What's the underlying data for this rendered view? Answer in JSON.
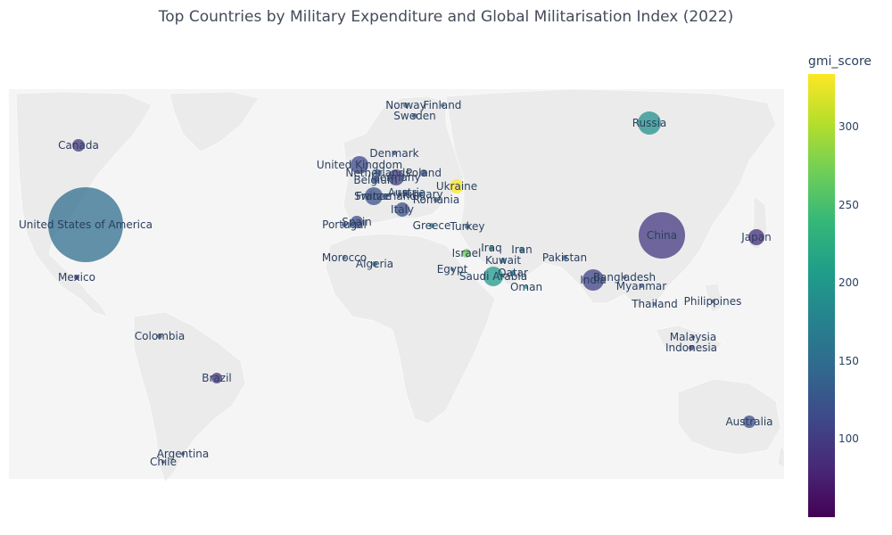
{
  "title": "Top Countries by Military Expenditure and Global Militarisation Index (2022)",
  "colorbar": {
    "title": "gmi_score",
    "ticks": [
      "300",
      "250",
      "200",
      "150",
      "100"
    ],
    "colors": [
      "#440154",
      "#482878",
      "#3e4989",
      "#31688e",
      "#26828e",
      "#1f9e89",
      "#35b779",
      "#6ece58",
      "#b5de2b",
      "#fde725"
    ],
    "range": [
      48,
      333
    ]
  },
  "map": {
    "land_color": "#ebebeb",
    "water_color": "#ffffff",
    "ocean_background": "#f5f5f5"
  },
  "countries": [
    {
      "name": "United States of America",
      "gmi": 150,
      "size": "huge"
    },
    {
      "name": "China",
      "gmi": 95,
      "size": "large"
    },
    {
      "name": "Russia",
      "gmi": 190,
      "size": "medium"
    },
    {
      "name": "India",
      "gmi": 105,
      "size": "medium"
    },
    {
      "name": "Saudi Arabia",
      "gmi": 200,
      "size": "medium"
    },
    {
      "name": "United Kingdom",
      "gmi": 110,
      "size": "medium"
    },
    {
      "name": "Germany",
      "gmi": 100,
      "size": "medium"
    },
    {
      "name": "France",
      "gmi": 120,
      "size": "medium"
    },
    {
      "name": "Japan",
      "gmi": 85,
      "size": "small"
    },
    {
      "name": "Canada",
      "gmi": 95,
      "size": "small"
    },
    {
      "name": "Italy",
      "gmi": 115,
      "size": "small"
    },
    {
      "name": "Spain",
      "gmi": 115,
      "size": "small"
    },
    {
      "name": "Australia",
      "gmi": 115,
      "size": "small"
    },
    {
      "name": "Brazil",
      "gmi": 90,
      "size": "small"
    },
    {
      "name": "Ukraine",
      "gmi": 333,
      "size": "small"
    },
    {
      "name": "Israel",
      "gmi": 270,
      "size": "tiny"
    },
    {
      "name": "Poland",
      "gmi": 120,
      "size": "tiny"
    },
    {
      "name": "Netherlands",
      "gmi": 130,
      "size": "tiny"
    },
    {
      "name": "Belgium",
      "gmi": 125,
      "size": "tiny"
    },
    {
      "name": "Switzerland",
      "gmi": 125,
      "size": "tiny"
    },
    {
      "name": "Austria",
      "gmi": 120,
      "size": "tiny"
    },
    {
      "name": "Hungary",
      "gmi": 130,
      "size": "tiny"
    },
    {
      "name": "Romania",
      "gmi": 130,
      "size": "tiny"
    },
    {
      "name": "Portugal",
      "gmi": 120,
      "size": "tiny"
    },
    {
      "name": "Norway",
      "gmi": 140,
      "size": "tiny"
    },
    {
      "name": "Finland",
      "gmi": 140,
      "size": "tiny"
    },
    {
      "name": "Sweden",
      "gmi": 130,
      "size": "tiny"
    },
    {
      "name": "Denmark",
      "gmi": 120,
      "size": "tiny"
    },
    {
      "name": "Greece",
      "gmi": 180,
      "size": "tiny"
    },
    {
      "name": "Turkey",
      "gmi": 140,
      "size": "tiny"
    },
    {
      "name": "Iraq",
      "gmi": 180,
      "size": "tiny"
    },
    {
      "name": "Iran",
      "gmi": 170,
      "size": "tiny"
    },
    {
      "name": "Kuwait",
      "gmi": 170,
      "size": "tiny"
    },
    {
      "name": "Qatar",
      "gmi": 175,
      "size": "tiny"
    },
    {
      "name": "Oman",
      "gmi": 190,
      "size": "tiny"
    },
    {
      "name": "Egypt",
      "gmi": 130,
      "size": "tiny"
    },
    {
      "name": "Algeria",
      "gmi": 150,
      "size": "tiny"
    },
    {
      "name": "Morocco",
      "gmi": 140,
      "size": "tiny"
    },
    {
      "name": "Pakistan",
      "gmi": 135,
      "size": "tiny"
    },
    {
      "name": "Bangladesh",
      "gmi": 105,
      "size": "tiny"
    },
    {
      "name": "Myanmar",
      "gmi": 110,
      "size": "tiny"
    },
    {
      "name": "Thailand",
      "gmi": 130,
      "size": "tiny"
    },
    {
      "name": "Philippines",
      "gmi": 110,
      "size": "tiny"
    },
    {
      "name": "Malaysia",
      "gmi": 110,
      "size": "tiny"
    },
    {
      "name": "Indonesia",
      "gmi": 95,
      "size": "tiny"
    },
    {
      "name": "Mexico",
      "gmi": 85,
      "size": "tiny"
    },
    {
      "name": "Colombia",
      "gmi": 125,
      "size": "tiny"
    },
    {
      "name": "Argentina",
      "gmi": 95,
      "size": "tiny"
    },
    {
      "name": "Chile",
      "gmi": 110,
      "size": "tiny"
    }
  ]
}
